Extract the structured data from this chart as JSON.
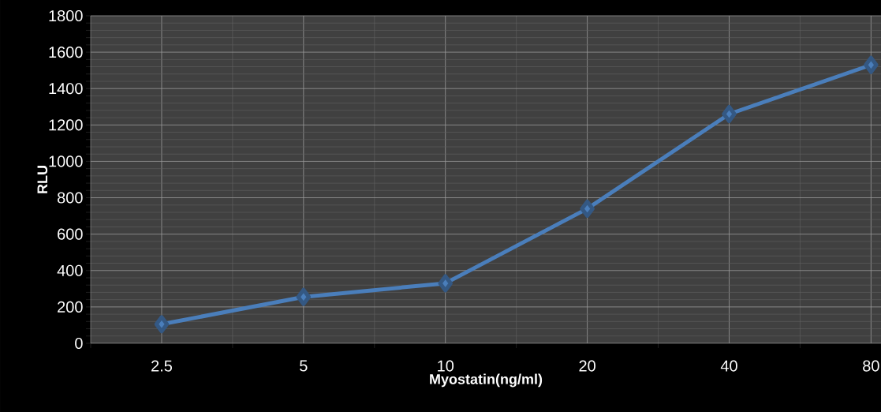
{
  "chart_data": {
    "type": "line",
    "xlabel": "Myostatin(ng/ml)",
    "ylabel": "RLU",
    "categories": [
      "2.5",
      "5",
      "10",
      "20",
      "40",
      "80"
    ],
    "values": [
      105,
      255,
      330,
      740,
      1260,
      1530
    ],
    "color": "#4a7ebb",
    "marker": "diamond",
    "line_style": "solid",
    "grid": true,
    "ylim": [
      0,
      1800
    ],
    "yticks": [
      0,
      200,
      400,
      600,
      800,
      1000,
      1200,
      1400,
      1600,
      1800
    ]
  }
}
